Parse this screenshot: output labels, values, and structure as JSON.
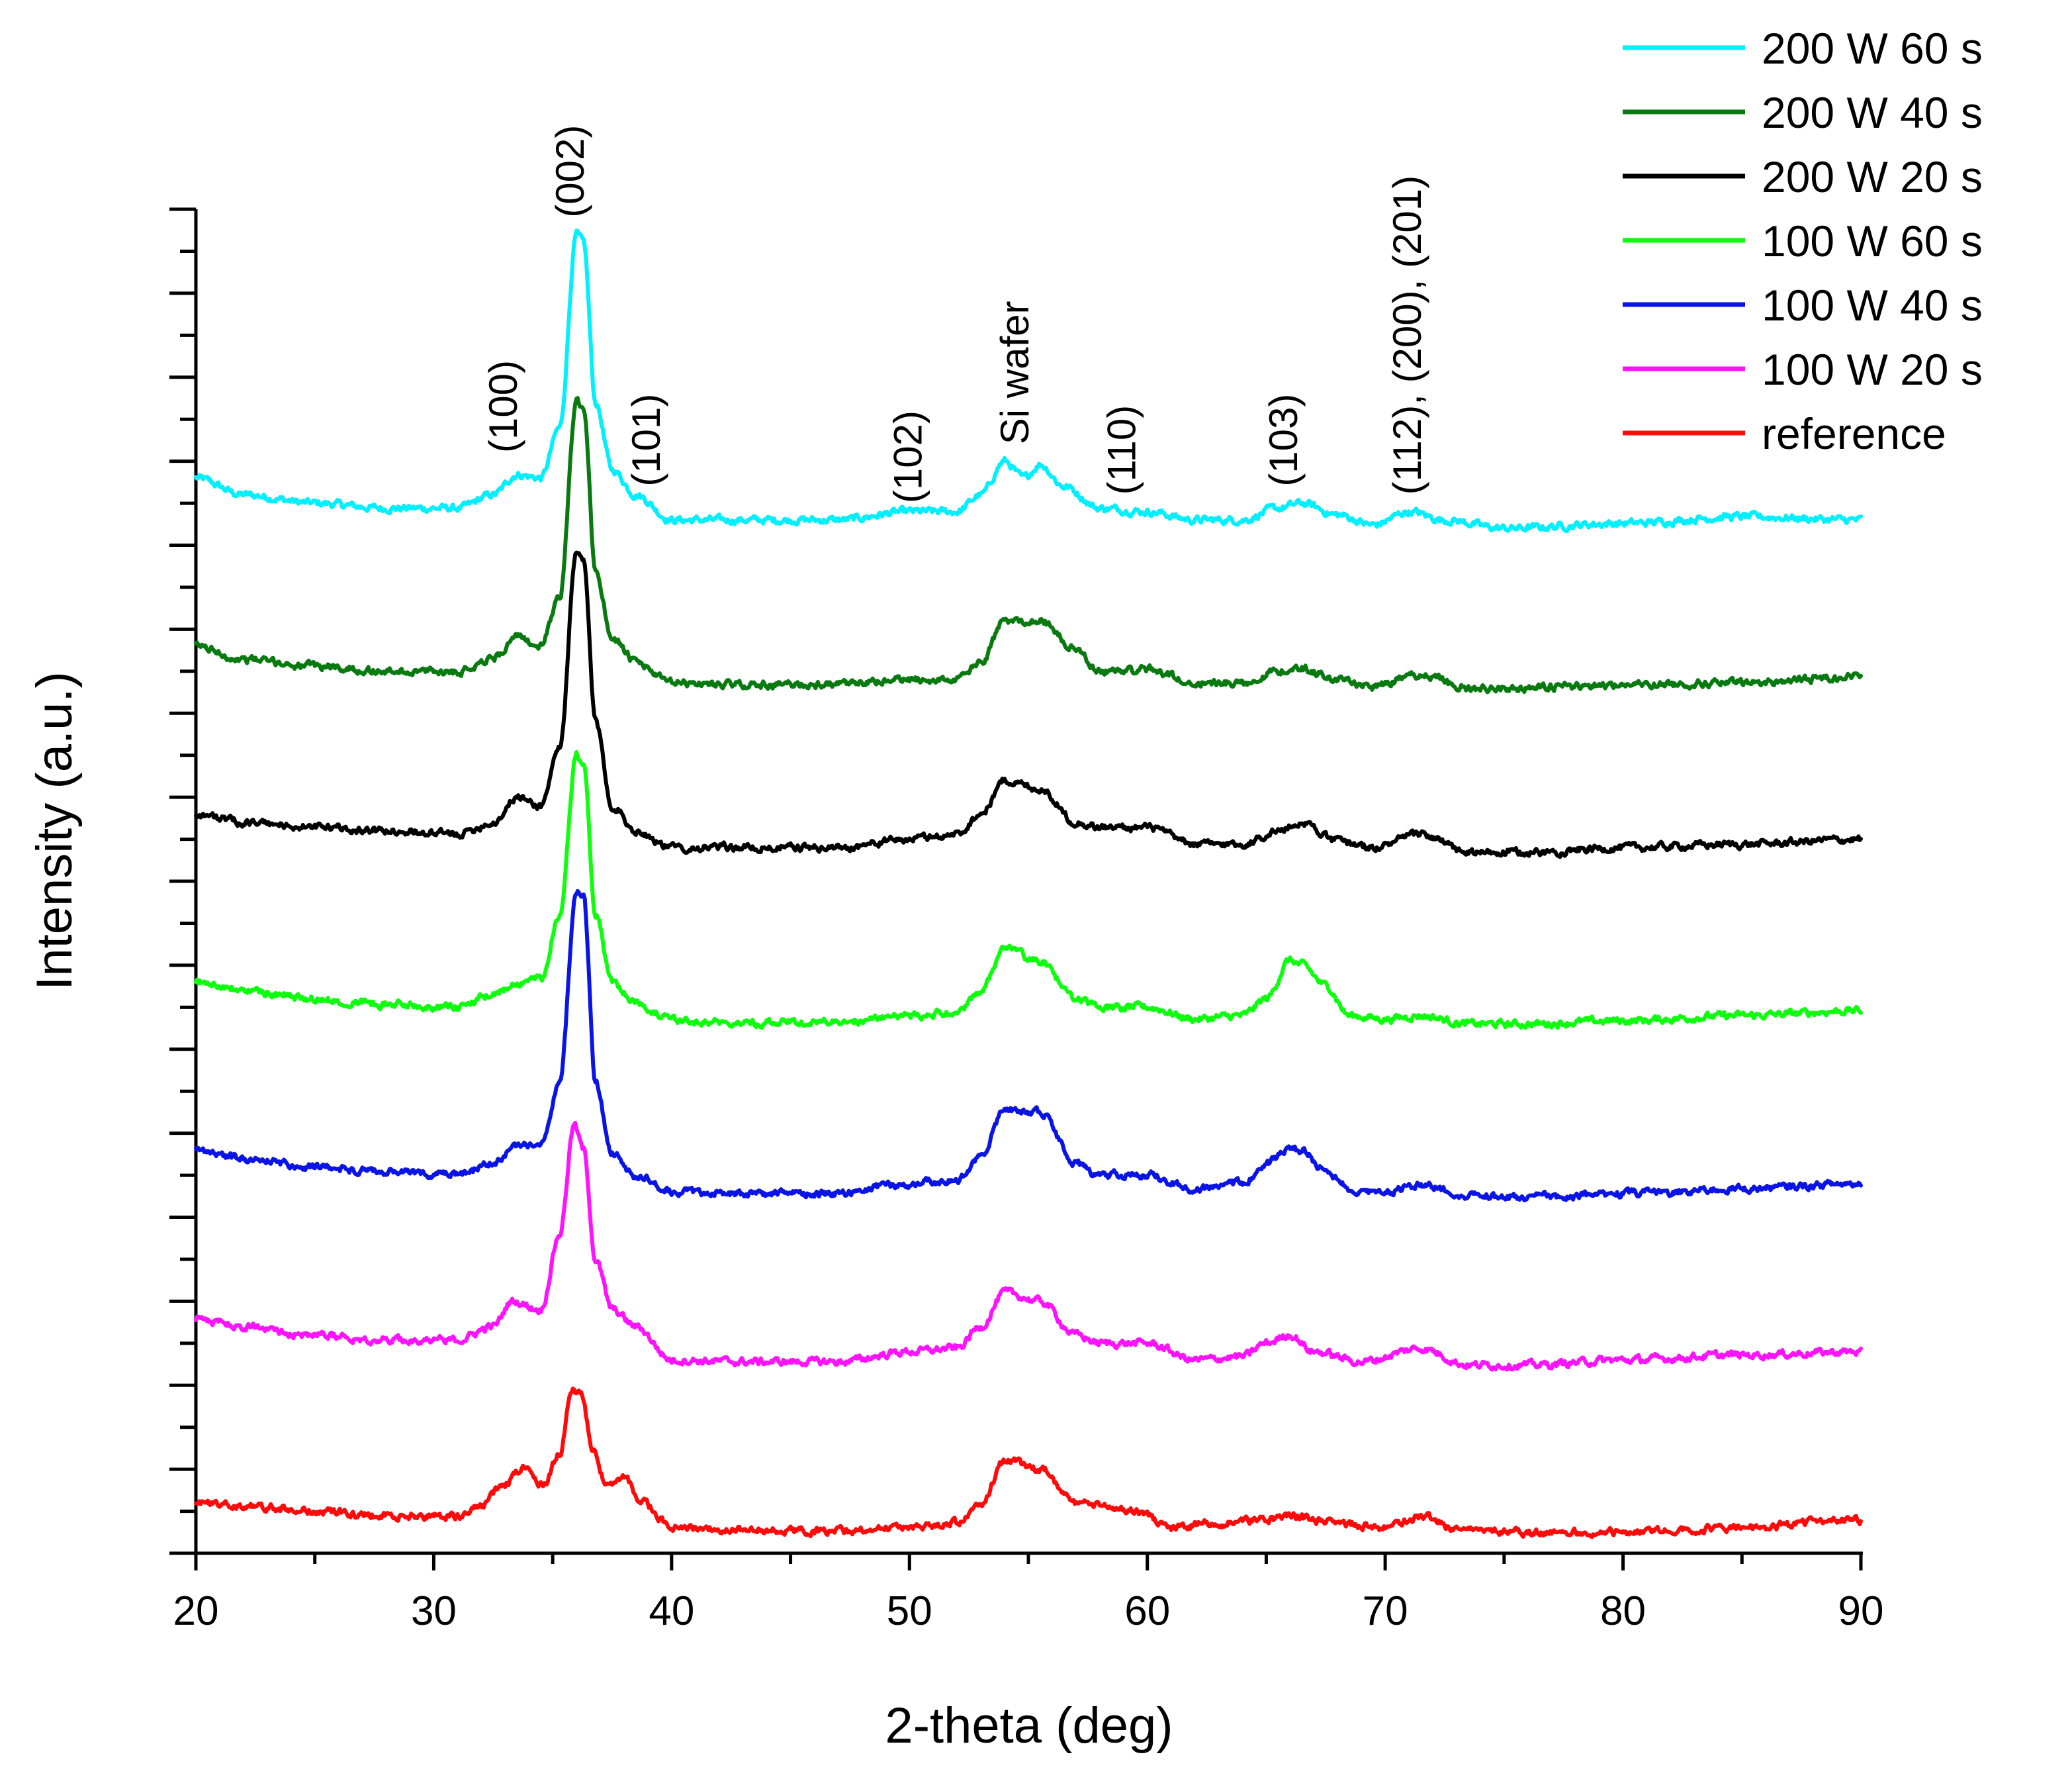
{
  "chart_data": {
    "type": "line",
    "title": "",
    "xlabel": "2-theta (deg)",
    "ylabel": "Intensity (a.u.)",
    "xlim": [
      20,
      90
    ],
    "ylim": [
      0,
      8
    ],
    "x_ticks": [
      20,
      30,
      40,
      50,
      60,
      70,
      80,
      90
    ],
    "y_tick_labels_shown": false,
    "grid": false,
    "legend_position": "top-right",
    "series": [
      {
        "name": "200 W 60 s",
        "color": "#00f0ff",
        "x": [
          20,
          22,
          25,
          28,
          31,
          32.5,
          33.5,
          34.5,
          35.3,
          36.0,
          36.3,
          36.8,
          37.5,
          38.5,
          40,
          43,
          47,
          50,
          52,
          53,
          54,
          54.8,
          55.5,
          56.5,
          58,
          60,
          62,
          64,
          65.5,
          66.5,
          68,
          69.5,
          71,
          72.5,
          75,
          80,
          85,
          90
        ],
        "y": [
          6.4,
          6.3,
          6.25,
          6.22,
          6.22,
          6.3,
          6.42,
          6.4,
          6.7,
          7.85,
          7.8,
          6.85,
          6.45,
          6.3,
          6.15,
          6.15,
          6.15,
          6.2,
          6.2,
          6.3,
          6.5,
          6.4,
          6.48,
          6.35,
          6.22,
          6.2,
          6.15,
          6.15,
          6.22,
          6.25,
          6.18,
          6.12,
          6.2,
          6.15,
          6.1,
          6.13,
          6.17,
          6.15
        ]
      },
      {
        "name": "200 W 40 s",
        "color": "#087a10",
        "x": [
          20,
          22,
          25,
          28,
          31,
          32.5,
          33.5,
          34.5,
          35.3,
          36.0,
          36.3,
          36.8,
          37.5,
          38.5,
          40,
          43,
          47,
          50,
          52,
          53,
          54,
          55.5,
          57,
          58,
          60,
          62,
          64,
          65.5,
          66.5,
          68,
          69.5,
          71.5,
          73.5,
          76,
          80,
          85,
          90
        ],
        "y": [
          5.4,
          5.32,
          5.28,
          5.25,
          5.25,
          5.33,
          5.45,
          5.4,
          5.7,
          6.85,
          6.8,
          5.85,
          5.45,
          5.3,
          5.18,
          5.17,
          5.17,
          5.2,
          5.2,
          5.3,
          5.55,
          5.55,
          5.38,
          5.25,
          5.26,
          5.18,
          5.18,
          5.25,
          5.27,
          5.2,
          5.16,
          5.23,
          5.15,
          5.15,
          5.17,
          5.18,
          5.22
        ]
      },
      {
        "name": "200 W 20 s",
        "color": "#000000",
        "x": [
          20,
          22,
          25,
          28,
          31,
          32.5,
          33.5,
          34.5,
          35.3,
          36.0,
          36.3,
          36.8,
          37.5,
          38.5,
          40,
          43,
          47,
          50,
          52,
          53,
          54,
          55.5,
          57,
          58,
          60,
          62,
          64,
          65.5,
          66.5,
          68,
          69.5,
          71.5,
          73.5,
          76,
          80,
          85,
          90
        ],
        "y": [
          4.4,
          4.35,
          4.32,
          4.3,
          4.28,
          4.35,
          4.5,
          4.45,
          4.8,
          5.95,
          5.9,
          4.95,
          4.45,
          4.3,
          4.2,
          4.2,
          4.2,
          4.25,
          4.28,
          4.4,
          4.6,
          4.55,
          4.35,
          4.32,
          4.32,
          4.22,
          4.22,
          4.3,
          4.35,
          4.24,
          4.2,
          4.28,
          4.17,
          4.17,
          4.2,
          4.22,
          4.25
        ]
      },
      {
        "name": "100 W 60 s",
        "color": "#0dff0d",
        "x": [
          20,
          22,
          25,
          28,
          31,
          32.5,
          33.5,
          34.5,
          35.3,
          36.0,
          36.3,
          36.8,
          37.5,
          38.5,
          40,
          43,
          47,
          50,
          52,
          53,
          54,
          55.5,
          57,
          58,
          60,
          62,
          64,
          65,
          66,
          66.5,
          67.5,
          68.5,
          70,
          71.5,
          73.5,
          76,
          80,
          85,
          90
        ],
        "y": [
          3.4,
          3.35,
          3.3,
          3.27,
          3.25,
          3.32,
          3.4,
          3.42,
          3.8,
          4.75,
          4.7,
          3.8,
          3.4,
          3.28,
          3.17,
          3.16,
          3.16,
          3.2,
          3.22,
          3.35,
          3.6,
          3.52,
          3.3,
          3.25,
          3.25,
          3.18,
          3.2,
          3.3,
          3.53,
          3.5,
          3.38,
          3.2,
          3.18,
          3.2,
          3.15,
          3.15,
          3.17,
          3.2,
          3.23
        ]
      },
      {
        "name": "100 W 40 s",
        "color": "#0a14e6",
        "x": [
          20,
          22,
          25,
          28,
          31,
          32.5,
          33.5,
          34.5,
          35.3,
          36.0,
          36.3,
          36.8,
          37.5,
          38.5,
          40,
          43,
          47,
          50,
          52,
          53,
          54,
          55.5,
          57,
          58,
          60,
          62,
          64,
          65,
          66,
          66.5,
          67.5,
          68.5,
          70,
          71.5,
          73.5,
          76,
          80,
          85,
          90
        ],
        "y": [
          2.4,
          2.35,
          2.3,
          2.27,
          2.25,
          2.32,
          2.42,
          2.45,
          2.8,
          3.95,
          3.9,
          2.8,
          2.38,
          2.25,
          2.15,
          2.14,
          2.14,
          2.2,
          2.22,
          2.35,
          2.65,
          2.62,
          2.32,
          2.25,
          2.25,
          2.17,
          2.2,
          2.32,
          2.42,
          2.4,
          2.28,
          2.17,
          2.15,
          2.19,
          2.13,
          2.12,
          2.14,
          2.17,
          2.2
        ]
      },
      {
        "name": "100 W 20 s",
        "color": "#ff12ff",
        "x": [
          20,
          22,
          25,
          28,
          31,
          32.5,
          33.3,
          34.5,
          35.3,
          35.9,
          36.3,
          36.8,
          37.5,
          38.5,
          40,
          43,
          47,
          50,
          52,
          53,
          54,
          55.5,
          57,
          58,
          60,
          62,
          64,
          65,
          66,
          67,
          69,
          71.5,
          73.5,
          76,
          80,
          85,
          90
        ],
        "y": [
          1.4,
          1.35,
          1.3,
          1.27,
          1.27,
          1.35,
          1.5,
          1.45,
          1.9,
          2.55,
          2.4,
          1.75,
          1.45,
          1.35,
          1.15,
          1.14,
          1.14,
          1.2,
          1.22,
          1.35,
          1.55,
          1.5,
          1.3,
          1.25,
          1.25,
          1.15,
          1.17,
          1.25,
          1.3,
          1.2,
          1.14,
          1.22,
          1.12,
          1.12,
          1.15,
          1.18,
          1.2
        ]
      },
      {
        "name": "reference",
        "color": "#ff0a0a",
        "x": [
          20,
          22,
          25,
          28,
          31,
          32,
          33,
          33.8,
          34.6,
          35.3,
          35.8,
          36.2,
          36.7,
          37.3,
          38.0,
          38.8,
          40,
          43,
          47,
          50,
          52,
          53,
          54,
          55.5,
          57,
          58,
          59.5,
          61,
          63,
          65,
          66,
          68,
          70,
          71.5,
          73,
          76,
          80,
          85,
          90
        ],
        "y": [
          0.3,
          0.28,
          0.25,
          0.22,
          0.22,
          0.28,
          0.42,
          0.5,
          0.4,
          0.6,
          0.98,
          0.95,
          0.6,
          0.4,
          0.45,
          0.3,
          0.15,
          0.14,
          0.13,
          0.16,
          0.18,
          0.3,
          0.55,
          0.5,
          0.3,
          0.28,
          0.26,
          0.15,
          0.18,
          0.2,
          0.22,
          0.18,
          0.15,
          0.22,
          0.15,
          0.12,
          0.13,
          0.15,
          0.2
        ]
      }
    ],
    "annotations": [
      {
        "text": "(100)",
        "x": 33.5,
        "y": 6.55
      },
      {
        "text": "(002)",
        "x": 36.3,
        "y": 7.95
      },
      {
        "text": "(101)",
        "x": 39.5,
        "y": 6.35
      },
      {
        "text": "(102)",
        "x": 50.5,
        "y": 6.25
      },
      {
        "text": "Si wafer",
        "x": 55.0,
        "y": 6.6
      },
      {
        "text": "(110)",
        "x": 59.5,
        "y": 6.3
      },
      {
        "text": "(103)",
        "x": 66.3,
        "y": 6.35
      },
      {
        "text": "(112), (200), (201)",
        "x": 71.5,
        "y": 6.3
      }
    ]
  }
}
